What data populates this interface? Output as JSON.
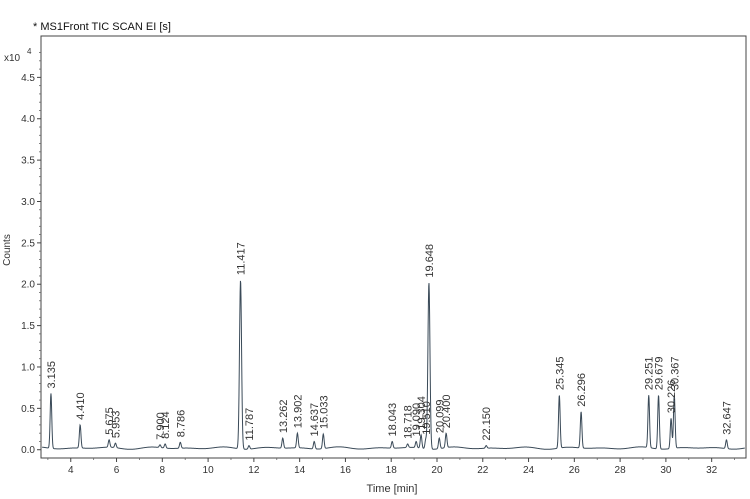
{
  "chart_data": {
    "type": "line",
    "title": "* MS1Front TIC SCAN EI [s]",
    "xlabel": "Time [min]",
    "ylabel": "Counts",
    "y_multiplier_label": "x10",
    "y_multiplier_exponent": "4",
    "xlim": [
      2.7,
      33.5
    ],
    "ylim": [
      -0.1,
      5.0
    ],
    "x_ticks": [
      4,
      6,
      8,
      10,
      12,
      14,
      16,
      18,
      20,
      22,
      24,
      26,
      28,
      30,
      32
    ],
    "y_ticks": [
      0.0,
      0.5,
      1.0,
      1.5,
      2.0,
      2.5,
      3.0,
      3.5,
      4.0,
      4.5
    ],
    "grid": false,
    "line_color": "#3a4a58",
    "peaks": [
      {
        "x": 3.135,
        "y": 0.68,
        "label": "3.135"
      },
      {
        "x": 4.41,
        "y": 0.3,
        "label": "4.410"
      },
      {
        "x": 5.675,
        "y": 0.12,
        "label": "5.675"
      },
      {
        "x": 5.953,
        "y": 0.08,
        "label": "5.953"
      },
      {
        "x": 7.9,
        "y": 0.06,
        "label": "7.900"
      },
      {
        "x": 8.124,
        "y": 0.07,
        "label": "8.124"
      },
      {
        "x": 8.786,
        "y": 0.09,
        "label": "8.786"
      },
      {
        "x": 11.417,
        "y": 2.05,
        "label": "11.417"
      },
      {
        "x": 11.787,
        "y": 0.05,
        "label": "11.787"
      },
      {
        "x": 13.262,
        "y": 0.14,
        "label": "13.262"
      },
      {
        "x": 13.902,
        "y": 0.2,
        "label": "13.902"
      },
      {
        "x": 14.637,
        "y": 0.1,
        "label": "14.637"
      },
      {
        "x": 15.033,
        "y": 0.19,
        "label": "15.033"
      },
      {
        "x": 18.043,
        "y": 0.1,
        "label": "18.043"
      },
      {
        "x": 18.718,
        "y": 0.07,
        "label": "18.718"
      },
      {
        "x": 19.09,
        "y": 0.1,
        "label": "19.090"
      },
      {
        "x": 19.304,
        "y": 0.18,
        "label": "19.304"
      },
      {
        "x": 19.648,
        "y": 2.02,
        "label": "19.648"
      },
      {
        "x": 19.51,
        "y": 0.12,
        "label": "19.510"
      },
      {
        "x": 20.099,
        "y": 0.14,
        "label": "20.099"
      },
      {
        "x": 20.4,
        "y": 0.2,
        "label": "20.400"
      },
      {
        "x": 22.15,
        "y": 0.05,
        "label": "22.150"
      },
      {
        "x": 25.345,
        "y": 0.66,
        "label": "25.345"
      },
      {
        "x": 26.296,
        "y": 0.46,
        "label": "26.296"
      },
      {
        "x": 29.251,
        "y": 0.66,
        "label": "29.251"
      },
      {
        "x": 29.679,
        "y": 0.66,
        "label": "29.679"
      },
      {
        "x": 30.226,
        "y": 0.38,
        "label": "30.226"
      },
      {
        "x": 30.367,
        "y": 0.66,
        "label": "30.367"
      },
      {
        "x": 32.647,
        "y": 0.12,
        "label": "32.647"
      }
    ]
  }
}
